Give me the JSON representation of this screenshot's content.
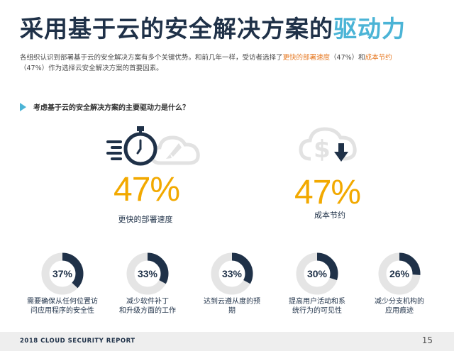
{
  "title": {
    "main": "采用基于云的安全解决方案的",
    "highlight": "驱动力"
  },
  "intro": {
    "part1": "各组织认识到部署基于云的安全解决方案有多个关键优势。和前几年一样，受访者选择了",
    "hl1": "更快的部署速度",
    "part2": "（47%）和",
    "hl2": "成本节约",
    "part3": "（47%）作为选择云安全解决方案的首要因素。"
  },
  "question": "考虑基于云的安全解决方案的主要驱动力是什么？",
  "colors": {
    "navy": "#1f3148",
    "accent": "#4bb4d6",
    "orange": "#e6771f",
    "gold": "#f2a900",
    "ring_bg": "#e5e5e5"
  },
  "chart_data": [
    {
      "type": "bar",
      "categories": [
        "更快的部署速度",
        "成本节约"
      ],
      "values": [
        47,
        47
      ],
      "labels": [
        "47%",
        "47%"
      ],
      "icons": [
        "stopwatch-rocket-cloud-icon",
        "dollar-cloud-down-icon"
      ]
    },
    {
      "type": "pie",
      "categories": [
        "需要确保从任何位置访问应用程序的安全性",
        "减少软件补丁和升级方面的工作",
        "达到云遵从度的预期",
        "提高用户活动和系统行为的可见性",
        "减少分支机构的应用痕迹"
      ],
      "values": [
        37,
        33,
        33,
        30,
        26
      ],
      "labels": [
        "37%",
        "33%",
        "33%",
        "30%",
        "26%"
      ],
      "label_lines": [
        [
          "需要确保从任何位置访",
          "问应用程序的安全性"
        ],
        [
          "减少软件补丁",
          "和升级方面的工作"
        ],
        [
          "达到云遵从度的预",
          "期"
        ],
        [
          "提高用户活动和系",
          "统行为的可见性"
        ],
        [
          "减少分支机构的",
          "应用痕迹"
        ]
      ]
    }
  ],
  "footer": {
    "report": "2018 CLOUD SECURITY REPORT",
    "page": "15"
  }
}
